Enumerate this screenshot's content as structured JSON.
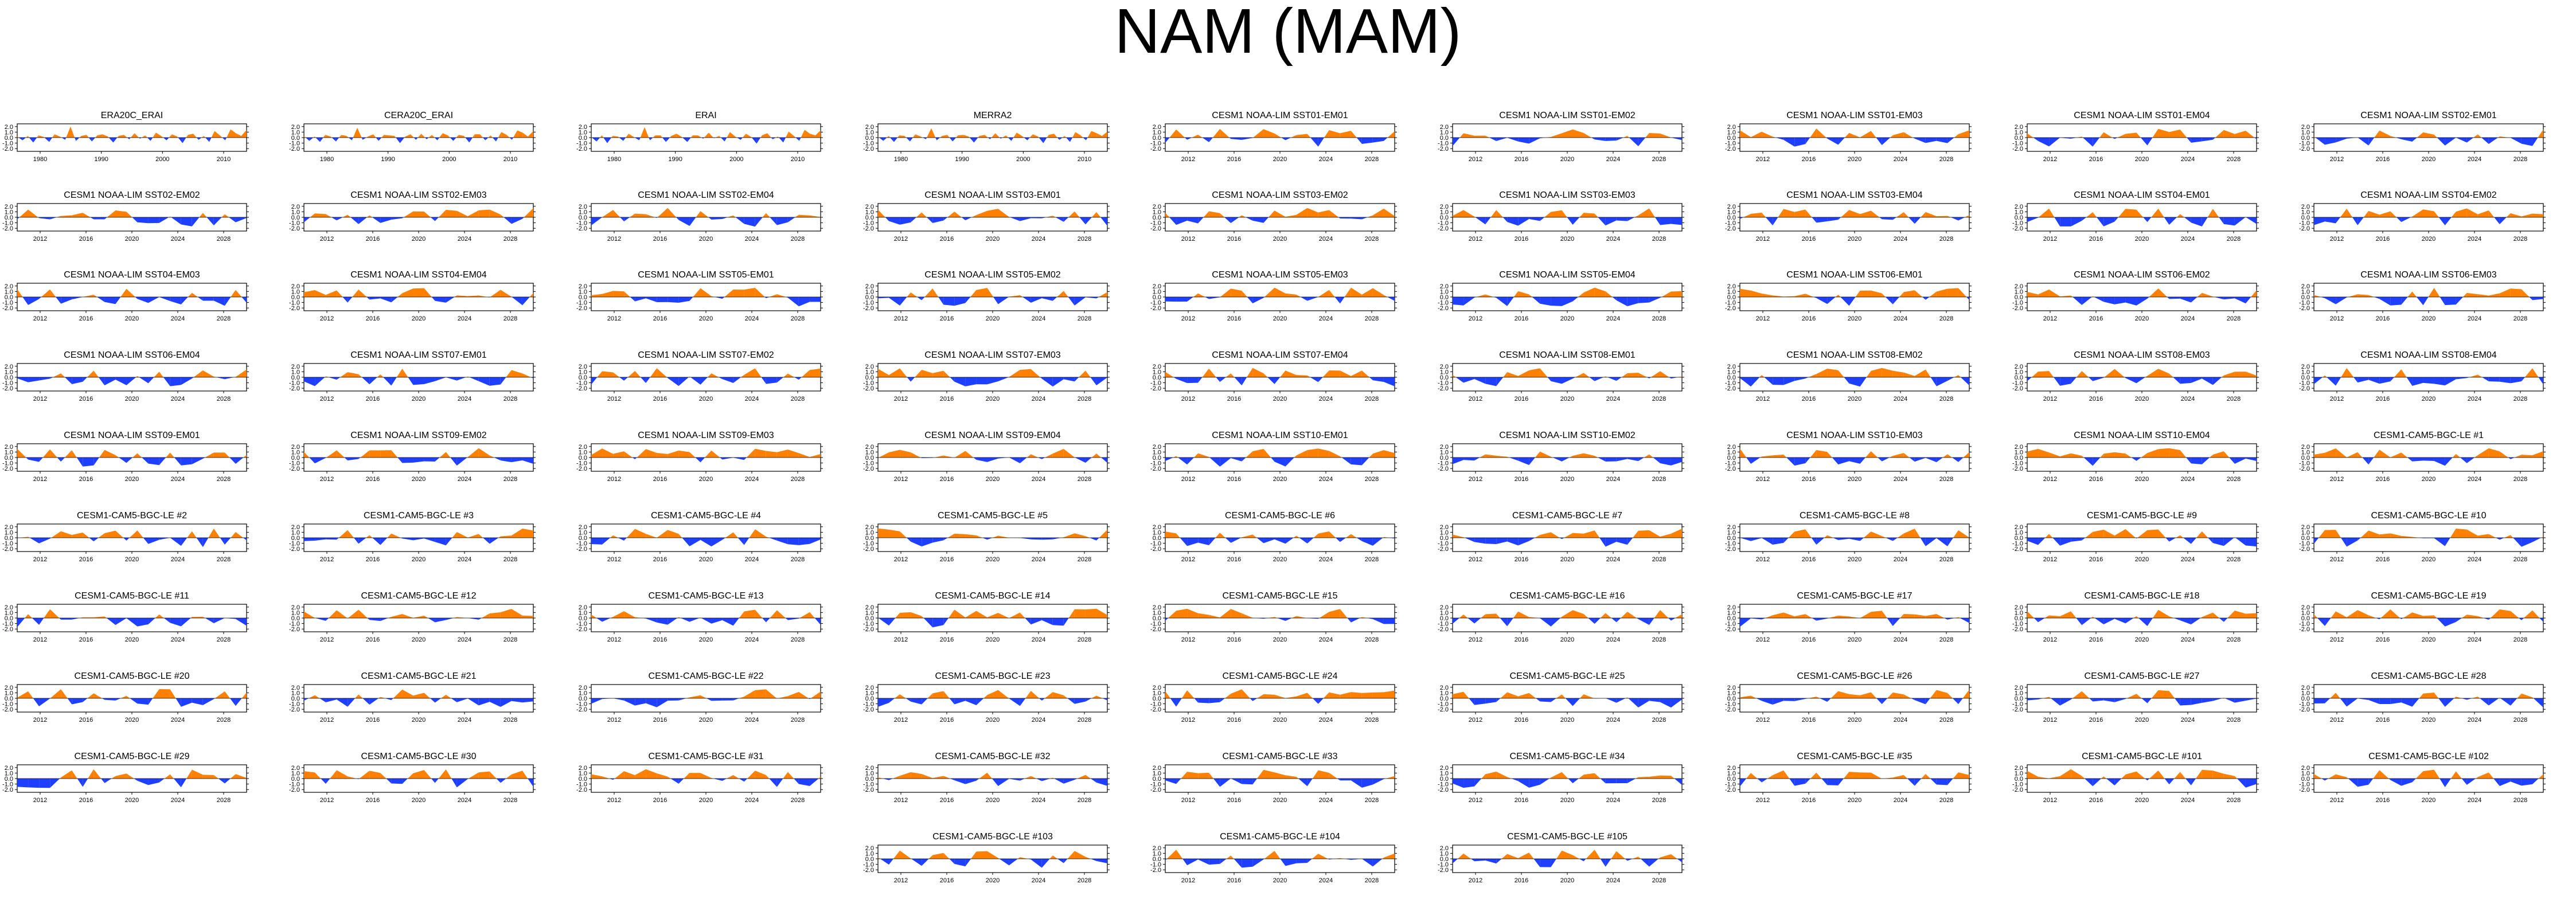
{
  "page": {
    "title": "NAM (MAM)",
    "colors": {
      "positive": "#ff7f00",
      "negative": "#1f3fff",
      "axis": "#000000"
    }
  },
  "chart_data": [
    {
      "type": "area",
      "title": "ERA20C_ERAI",
      "x_ticks": [
        "1980",
        "1990",
        "2000",
        "2010"
      ],
      "y_ticks": [
        "2.0",
        "1.0",
        "0.0",
        "-1.0",
        "-2.0"
      ],
      "ylim": [
        -2.5,
        2.5
      ],
      "y": [
        0.2,
        -0.5,
        0.3,
        -0.9,
        0.4,
        0.1,
        -0.8,
        0.6,
        0.2,
        -0.4,
        2.0,
        -0.6,
        0.3,
        0.5,
        -0.7,
        0.4,
        0.6,
        0.2,
        -0.9,
        0.3,
        0.5,
        -0.3,
        0.8,
        -0.2,
        0.4,
        -0.6,
        0.9,
        0.3,
        -0.5,
        0.6,
        0.2,
        -1.0,
        0.5,
        0.7,
        -0.4,
        0.3,
        -0.8,
        1.2,
        0.4,
        -0.5,
        1.5,
        0.8,
        0.3,
        1.4
      ]
    },
    {
      "type": "area",
      "title": "CERA20C_ERAI",
      "x_ticks": [
        "1980",
        "1990",
        "2000",
        "2010"
      ],
      "y_ticks": [
        "2.0",
        "1.0",
        "0.0",
        "-1.0",
        "-2.0"
      ],
      "ylim": [
        -2.5,
        2.5
      ],
      "y": [
        0.3,
        -0.6,
        0.2,
        -0.8,
        0.5,
        0.2,
        -0.7,
        0.5,
        0.3,
        -0.5,
        1.8,
        -0.4,
        0.2,
        0.6,
        -0.6,
        0.5,
        0.4,
        0.3,
        -1.0,
        0.2,
        0.6,
        -0.4,
        0.7,
        -0.3,
        0.5,
        -0.5,
        0.8,
        0.4,
        -0.6,
        0.5,
        0.3,
        -0.9,
        0.6,
        0.6,
        -0.5,
        0.4,
        -0.7,
        1.0,
        0.5,
        -0.4,
        1.3,
        0.9,
        0.2,
        1.2
      ]
    },
    {
      "type": "area",
      "title": "ERAI",
      "x_ticks": [
        "1980",
        "1990",
        "2000",
        "2010"
      ],
      "y_ticks": [
        "2.0",
        "1.0",
        "0.0",
        "-1.0",
        "-2.0"
      ],
      "ylim": [
        -2.5,
        2.5
      ],
      "y": [
        0.1,
        -0.7,
        0.4,
        -1.0,
        0.3,
        0.2,
        -0.6,
        0.7,
        0.1,
        -0.5,
        1.9,
        -0.5,
        0.4,
        0.4,
        -0.8,
        0.3,
        0.7,
        0.1,
        -0.8,
        0.4,
        0.4,
        -0.2,
        0.9,
        -0.1,
        0.3,
        -0.7,
        1.0,
        0.2,
        -0.4,
        0.7,
        0.1,
        -1.1,
        0.4,
        0.8,
        -0.3,
        0.2,
        -0.9,
        1.1,
        0.3,
        -0.6,
        1.4,
        0.7,
        0.4,
        1.3
      ]
    },
    {
      "type": "area",
      "title": "MERRA2",
      "x_ticks": [
        "1980",
        "1990",
        "2000",
        "2010"
      ],
      "y_ticks": [
        "2.0",
        "1.0",
        "0.0",
        "-1.0",
        "-2.0"
      ],
      "ylim": [
        -2.5,
        2.5
      ],
      "y": [
        0.2,
        -0.6,
        0.3,
        -0.8,
        0.4,
        0.3,
        -0.7,
        0.6,
        0.2,
        -0.3,
        1.7,
        -0.5,
        0.3,
        0.5,
        -0.7,
        0.4,
        0.5,
        0.2,
        -0.9,
        0.3,
        0.5,
        -0.3,
        0.8,
        -0.2,
        0.4,
        -0.6,
        0.9,
        0.3,
        -0.5,
        0.6,
        0.2,
        -1.0,
        0.5,
        0.7,
        -0.4,
        0.3,
        -0.8,
        1.0,
        0.4,
        -0.5,
        1.2,
        0.8,
        0.3,
        1.1
      ]
    }
  ],
  "sim_panel_titles": [
    "CESM1 NOAA-LIM SST01-EM01",
    "CESM1 NOAA-LIM SST01-EM02",
    "CESM1 NOAA-LIM SST01-EM03",
    "CESM1 NOAA-LIM SST01-EM04",
    "CESM1 NOAA-LIM SST02-EM01",
    "CESM1 NOAA-LIM SST02-EM02",
    "CESM1 NOAA-LIM SST02-EM03",
    "CESM1 NOAA-LIM SST02-EM04",
    "CESM1 NOAA-LIM SST03-EM01",
    "CESM1 NOAA-LIM SST03-EM02",
    "CESM1 NOAA-LIM SST03-EM03",
    "CESM1 NOAA-LIM SST03-EM04",
    "CESM1 NOAA-LIM SST04-EM01",
    "CESM1 NOAA-LIM SST04-EM02",
    "CESM1 NOAA-LIM SST04-EM03",
    "CESM1 NOAA-LIM SST04-EM04",
    "CESM1 NOAA-LIM SST05-EM01",
    "CESM1 NOAA-LIM SST05-EM02",
    "CESM1 NOAA-LIM SST05-EM03",
    "CESM1 NOAA-LIM SST05-EM04",
    "CESM1 NOAA-LIM SST06-EM01",
    "CESM1 NOAA-LIM SST06-EM02",
    "CESM1 NOAA-LIM SST06-EM03",
    "CESM1 NOAA-LIM SST06-EM04",
    "CESM1 NOAA-LIM SST07-EM01",
    "CESM1 NOAA-LIM SST07-EM02",
    "CESM1 NOAA-LIM SST07-EM03",
    "CESM1 NOAA-LIM SST07-EM04",
    "CESM1 NOAA-LIM SST08-EM01",
    "CESM1 NOAA-LIM SST08-EM02",
    "CESM1 NOAA-LIM SST08-EM03",
    "CESM1 NOAA-LIM SST08-EM04",
    "CESM1 NOAA-LIM SST09-EM01",
    "CESM1 NOAA-LIM SST09-EM02",
    "CESM1 NOAA-LIM SST09-EM03",
    "CESM1 NOAA-LIM SST09-EM04",
    "CESM1 NOAA-LIM SST10-EM01",
    "CESM1 NOAA-LIM SST10-EM02",
    "CESM1 NOAA-LIM SST10-EM03",
    "CESM1 NOAA-LIM SST10-EM04",
    "CESM1-CAM5-BGC-LE #1",
    "CESM1-CAM5-BGC-LE #2",
    "CESM1-CAM5-BGC-LE #3",
    "CESM1-CAM5-BGC-LE #4",
    "CESM1-CAM5-BGC-LE #5",
    "CESM1-CAM5-BGC-LE #6",
    "CESM1-CAM5-BGC-LE #7",
    "CESM1-CAM5-BGC-LE #8",
    "CESM1-CAM5-BGC-LE #9",
    "CESM1-CAM5-BGC-LE #10",
    "CESM1-CAM5-BGC-LE #11",
    "CESM1-CAM5-BGC-LE #12",
    "CESM1-CAM5-BGC-LE #13",
    "CESM1-CAM5-BGC-LE #14",
    "CESM1-CAM5-BGC-LE #15",
    "CESM1-CAM5-BGC-LE #16",
    "CESM1-CAM5-BGC-LE #17",
    "CESM1-CAM5-BGC-LE #18",
    "CESM1-CAM5-BGC-LE #19",
    "CESM1-CAM5-BGC-LE #20",
    "CESM1-CAM5-BGC-LE #21",
    "CESM1-CAM5-BGC-LE #22",
    "CESM1-CAM5-BGC-LE #23",
    "CESM1-CAM5-BGC-LE #24",
    "CESM1-CAM5-BGC-LE #25",
    "CESM1-CAM5-BGC-LE #26",
    "CESM1-CAM5-BGC-LE #27",
    "CESM1-CAM5-BGC-LE #28",
    "CESM1-CAM5-BGC-LE #29",
    "CESM1-CAM5-BGC-LE #30",
    "CESM1-CAM5-BGC-LE #31",
    "CESM1-CAM5-BGC-LE #32",
    "CESM1-CAM5-BGC-LE #33",
    "CESM1-CAM5-BGC-LE #34",
    "CESM1-CAM5-BGC-LE #35",
    "CESM1-CAM5-BGC-LE #101",
    "CESM1-CAM5-BGC-LE #102",
    "CESM1-CAM5-BGC-LE #103",
    "CESM1-CAM5-BGC-LE #104",
    "CESM1-CAM5-BGC-LE #105"
  ],
  "sim_x_ticks": [
    "2012",
    "2016",
    "2020",
    "2024",
    "2028"
  ],
  "sim_y_ticks": [
    "2.0",
    "1.0",
    "0.0",
    "-1.0",
    "-2.0"
  ]
}
